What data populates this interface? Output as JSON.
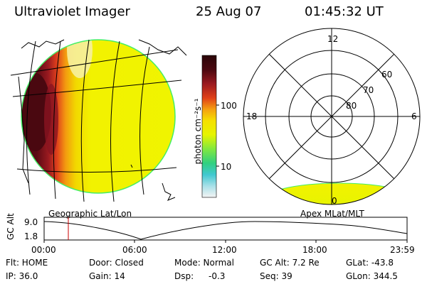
{
  "header": {
    "instrument": "Ultraviolet Imager",
    "date": "25 Aug 07",
    "time": "01:45:32 UT"
  },
  "colorbar": {
    "unit_label": "photon cm⁻²s⁻¹",
    "tick_high": "100",
    "tick_low": "10"
  },
  "left_map": {
    "label": "Geographic Lat/Lon"
  },
  "right_map": {
    "label": "Apex MLat/MLT",
    "mlt_labels": {
      "top": "12",
      "left": "18",
      "right": "6",
      "bottom": "0"
    },
    "lat_labels": [
      "60",
      "70",
      "80"
    ]
  },
  "alt_plot": {
    "ylabel": "GC Alt",
    "y_ticks": [
      "9.0",
      "1.8"
    ],
    "x_ticks": [
      "00:00",
      "06:00",
      "12:00",
      "18:00",
      "23:59"
    ],
    "marker_time": "01:45"
  },
  "info": {
    "flt": "Flt: HOME",
    "ip": "IP: 36.0",
    "door": "Door: Closed",
    "gain": "Gain: 14",
    "mode": "Mode: Normal",
    "dsp_label": "Dsp:",
    "dsp_value": "-0.3",
    "gc_alt": "GC Alt: 7.2 Re",
    "seq": "Seq: 39",
    "glat": "GLat: -43.8",
    "glon": "GLon: 344.5"
  },
  "colors": {
    "background": "#ffffff",
    "disk_yellow": "#f2f200",
    "disk_edge": "#44ee66",
    "aurora_dark": "#4a0810",
    "aurora_red": "#9a1a20",
    "marker": "#cc0000"
  }
}
